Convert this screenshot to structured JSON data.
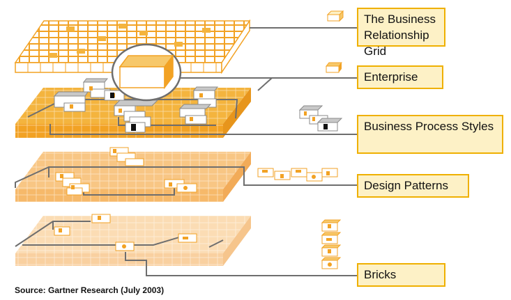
{
  "labels": {
    "business_grid": "The Business Relationship Grid",
    "enterprise": "Enterprise",
    "business_process": "Business Process Styles",
    "design_patterns": "Design Patterns",
    "bricks": "Bricks"
  },
  "source": "Source: Gartner Research (July 2003)",
  "colors": {
    "grid_orange": "#f4b43e",
    "grid_dark": "#f2a224",
    "layer_design": "#f8c684",
    "layer_bricks": "#fbdcb4",
    "line_gray": "#6e6e6e",
    "box_fill": "#fdf1c6",
    "box_border": "#efb000"
  }
}
